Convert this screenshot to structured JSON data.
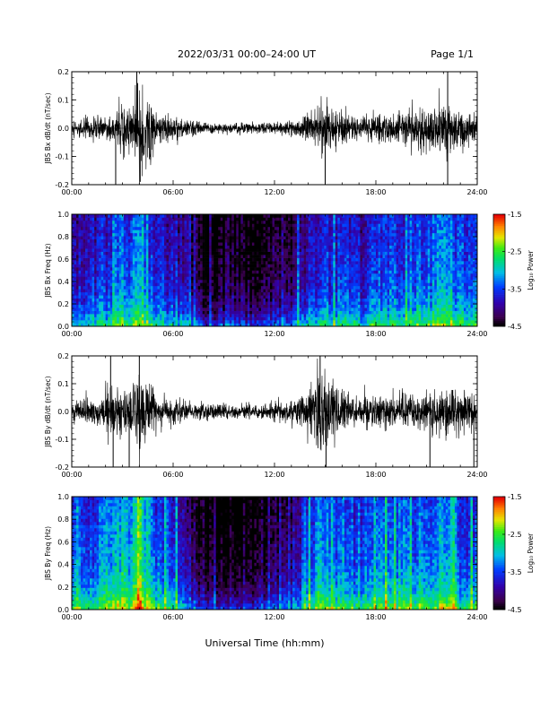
{
  "header": {
    "title": "2022/03/31  00:00–24:00 UT",
    "page": "Page 1/1"
  },
  "xlabel": "Universal Time (hh:mm)",
  "chart_data": [
    {
      "type": "line",
      "panel": "jbs-bx-dbdt",
      "ylabel": "JBS Bx dB/dt (nT/sec)",
      "xlim": [
        0,
        24
      ],
      "xticks": [
        "00:00",
        "06:00",
        "12:00",
        "18:00",
        "24:00"
      ],
      "ylim": [
        -0.2,
        0.2
      ],
      "yticks": [
        "-0.2",
        "-0.1",
        "0.0",
        "0.1",
        "0.2"
      ],
      "color": "#000000",
      "series": [
        {
          "x": [
            0,
            0.5,
            1,
            1.5,
            2,
            2.5,
            3,
            3.5,
            4,
            4.5,
            5,
            5.5,
            6,
            6.5,
            7,
            7.5,
            8,
            8.5,
            9,
            9.5,
            10,
            10.5,
            11,
            11.5,
            12,
            12.5,
            13,
            13.5,
            14,
            14.5,
            15,
            15.5,
            16,
            16.5,
            17,
            17.5,
            18,
            18.5,
            19,
            19.5,
            20,
            20.5,
            21,
            21.5,
            22,
            22.5,
            23,
            23.5,
            24
          ],
          "envelope": [
            0.03,
            0.04,
            0.05,
            0.05,
            0.06,
            0.07,
            0.13,
            0.08,
            0.2,
            0.17,
            0.06,
            0.05,
            0.05,
            0.04,
            0.03,
            0.03,
            0.025,
            0.02,
            0.02,
            0.02,
            0.02,
            0.02,
            0.02,
            0.02,
            0.025,
            0.03,
            0.03,
            0.04,
            0.06,
            0.07,
            0.11,
            0.08,
            0.06,
            0.06,
            0.05,
            0.05,
            0.06,
            0.06,
            0.06,
            0.07,
            0.08,
            0.1,
            0.09,
            0.09,
            0.12,
            0.1,
            0.07,
            0.07,
            0.06
          ]
        }
      ],
      "spikes": [
        {
          "x": 2.6,
          "y": -0.2
        },
        {
          "x": 3.85,
          "y": 0.2
        },
        {
          "x": 4.05,
          "y": -0.19
        },
        {
          "x": 15.0,
          "y": -0.2
        },
        {
          "x": 22.25,
          "y": 0.2
        },
        {
          "x": 22.25,
          "y": -0.2
        }
      ]
    },
    {
      "type": "heatmap",
      "panel": "jbs-bx-spectrogram",
      "ylabel": "JBS Bx Freq (Hz)",
      "xlim": [
        0,
        24
      ],
      "xticks": [
        "00:00",
        "06:00",
        "12:00",
        "18:00",
        "24:00"
      ],
      "ylim": [
        0,
        1.0
      ],
      "yticks": [
        "0.0",
        "0.2",
        "0.4",
        "0.6",
        "0.8",
        "1.0"
      ],
      "colorbar": {
        "label": "Log₁₀ Power",
        "range": [
          -4.5,
          -1.5
        ],
        "ticks": [
          "-1.5",
          "-2.5",
          "-3.5",
          "-4.5"
        ]
      },
      "x_hours": [
        0,
        0.5,
        1,
        1.5,
        2,
        2.5,
        3,
        3.5,
        4,
        4.5,
        5,
        5.5,
        6,
        6.5,
        7,
        7.5,
        8,
        8.5,
        9,
        9.5,
        10,
        10.5,
        11,
        11.5,
        12,
        12.5,
        13,
        13.5,
        14,
        14.5,
        15,
        15.5,
        16,
        16.5,
        17,
        17.5,
        18,
        18.5,
        19,
        19.5,
        20,
        20.5,
        21,
        21.5,
        22,
        22.5,
        23,
        23.5,
        24
      ],
      "mean_power": [
        -3.8,
        -3.7,
        -3.6,
        -3.7,
        -3.5,
        -3.5,
        -3.0,
        -3.4,
        -2.9,
        -3.2,
        -3.7,
        -3.7,
        -3.6,
        -3.8,
        -4.0,
        -4.3,
        -4.4,
        -4.4,
        -4.4,
        -4.4,
        -4.4,
        -4.4,
        -4.4,
        -4.3,
        -4.2,
        -4.1,
        -4.0,
        -3.9,
        -3.7,
        -3.8,
        -3.5,
        -3.7,
        -3.6,
        -3.6,
        -3.7,
        -3.6,
        -3.5,
        -3.5,
        -3.5,
        -3.4,
        -3.3,
        -3.3,
        -3.4,
        -3.3,
        -3.1,
        -3.2,
        -3.4,
        -3.4,
        -3.5
      ]
    },
    {
      "type": "line",
      "panel": "jbs-by-dbdt",
      "ylabel": "JBS By dB/dt (nT/sec)",
      "xlim": [
        0,
        24
      ],
      "xticks": [
        "00:00",
        "06:00",
        "12:00",
        "18:00",
        "24:00"
      ],
      "ylim": [
        -0.2,
        0.2
      ],
      "yticks": [
        "-0.2",
        "-0.1",
        "0.0",
        "0.1",
        "0.2"
      ],
      "color": "#000000",
      "series": [
        {
          "x": [
            0,
            0.5,
            1,
            1.5,
            2,
            2.5,
            3,
            3.5,
            4,
            4.5,
            5,
            5.5,
            6,
            6.5,
            7,
            7.5,
            8,
            8.5,
            9,
            9.5,
            10,
            10.5,
            11,
            11.5,
            12,
            12.5,
            13,
            13.5,
            14,
            14.5,
            15,
            15.5,
            16,
            16.5,
            17,
            17.5,
            18,
            18.5,
            19,
            19.5,
            20,
            20.5,
            21,
            21.5,
            22,
            22.5,
            23,
            23.5,
            24
          ],
          "envelope": [
            0.04,
            0.05,
            0.06,
            0.07,
            0.09,
            0.12,
            0.1,
            0.1,
            0.16,
            0.13,
            0.07,
            0.06,
            0.05,
            0.05,
            0.04,
            0.04,
            0.035,
            0.035,
            0.03,
            0.03,
            0.03,
            0.03,
            0.035,
            0.03,
            0.04,
            0.04,
            0.05,
            0.06,
            0.1,
            0.2,
            0.2,
            0.12,
            0.08,
            0.07,
            0.06,
            0.07,
            0.07,
            0.07,
            0.07,
            0.08,
            0.09,
            0.08,
            0.08,
            0.1,
            0.12,
            0.1,
            0.08,
            0.08,
            0.07
          ]
        }
      ],
      "spikes": [
        {
          "x": 2.3,
          "y": 0.2
        },
        {
          "x": 2.45,
          "y": -0.2
        },
        {
          "x": 4.0,
          "y": 0.2
        },
        {
          "x": 3.4,
          "y": -0.2
        },
        {
          "x": 14.7,
          "y": 0.2
        },
        {
          "x": 15.05,
          "y": -0.2
        },
        {
          "x": 21.2,
          "y": -0.2
        },
        {
          "x": 23.8,
          "y": -0.2
        }
      ]
    },
    {
      "type": "heatmap",
      "panel": "jbs-by-spectrogram",
      "ylabel": "JBS By Freq (Hz)",
      "xlim": [
        0,
        24
      ],
      "xticks": [
        "00:00",
        "06:00",
        "12:00",
        "18:00",
        "24:00"
      ],
      "ylim": [
        0,
        1.0
      ],
      "yticks": [
        "0.0",
        "0.2",
        "0.4",
        "0.6",
        "0.8",
        "1.0"
      ],
      "colorbar": {
        "label": "Log₁₀ Power",
        "range": [
          -4.5,
          -1.5
        ],
        "ticks": [
          "-1.5",
          "-2.5",
          "-3.5",
          "-4.5"
        ]
      },
      "x_hours": [
        0,
        0.5,
        1,
        1.5,
        2,
        2.5,
        3,
        3.5,
        4,
        4.5,
        5,
        5.5,
        6,
        6.5,
        7,
        7.5,
        8,
        8.5,
        9,
        9.5,
        10,
        10.5,
        11,
        11.5,
        12,
        12.5,
        13,
        13.5,
        14,
        14.5,
        15,
        15.5,
        16,
        16.5,
        17,
        17.5,
        18,
        18.5,
        19,
        19.5,
        20,
        20.5,
        21,
        21.5,
        22,
        22.5,
        23,
        23.5,
        24
      ],
      "mean_power": [
        -3.5,
        -3.4,
        -3.4,
        -3.3,
        -3.2,
        -3.1,
        -2.9,
        -3.0,
        -2.5,
        -2.9,
        -3.3,
        -3.4,
        -3.5,
        -3.7,
        -4.0,
        -4.3,
        -4.4,
        -4.4,
        -4.4,
        -4.4,
        -4.4,
        -4.4,
        -4.3,
        -4.3,
        -4.1,
        -4.0,
        -3.9,
        -3.7,
        -3.4,
        -3.2,
        -3.1,
        -3.3,
        -3.3,
        -3.3,
        -3.4,
        -3.3,
        -3.3,
        -3.2,
        -3.3,
        -3.2,
        -3.1,
        -3.2,
        -3.2,
        -3.1,
        -3.0,
        -3.1,
        -3.3,
        -3.3,
        -3.4
      ]
    }
  ]
}
